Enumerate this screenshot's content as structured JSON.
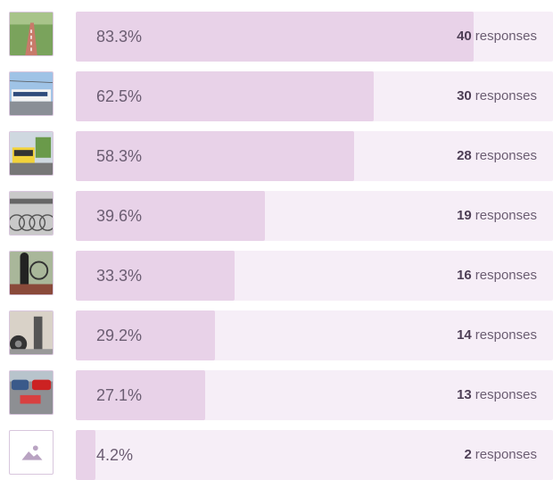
{
  "rows": [
    {
      "pct_label": "83.3%",
      "fraction": 0.833,
      "count": "40",
      "unit": "responses",
      "icon": "bike-path-photo-icon"
    },
    {
      "pct_label": "62.5%",
      "fraction": 0.625,
      "count": "30",
      "unit": "responses",
      "icon": "tram-photo-icon"
    },
    {
      "pct_label": "58.3%",
      "fraction": 0.583,
      "count": "28",
      "unit": "responses",
      "icon": "bus-photo-icon"
    },
    {
      "pct_label": "39.6%",
      "fraction": 0.396,
      "count": "19",
      "unit": "responses",
      "icon": "bike-parking-photo-icon"
    },
    {
      "pct_label": "33.3%",
      "fraction": 0.333,
      "count": "16",
      "unit": "responses",
      "icon": "bike-repair-photo-icon"
    },
    {
      "pct_label": "29.2%",
      "fraction": 0.292,
      "count": "14",
      "unit": "responses",
      "icon": "pump-station-photo-icon"
    },
    {
      "pct_label": "27.1%",
      "fraction": 0.271,
      "count": "13",
      "unit": "responses",
      "icon": "car-parking-photo-icon"
    },
    {
      "pct_label": "4.2%",
      "fraction": 0.042,
      "count": "2",
      "unit": "responses",
      "icon": "image-placeholder-icon"
    }
  ],
  "colors": {
    "track": "#f6eef7",
    "fill": "#e8d2e8",
    "text": "#6b5d72"
  }
}
